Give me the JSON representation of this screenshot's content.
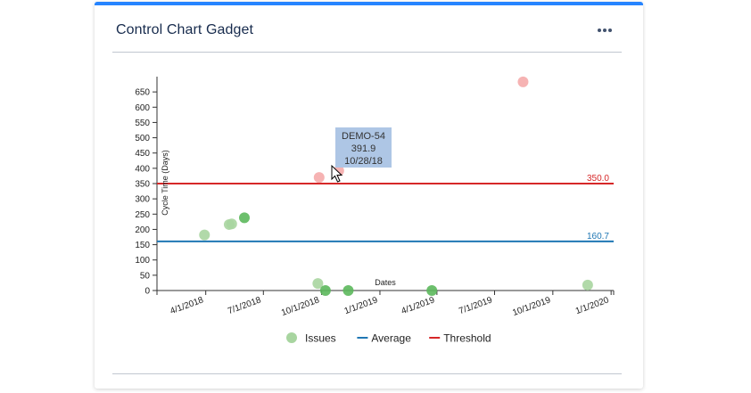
{
  "gadget": {
    "title": "Control Chart Gadget",
    "more_icon": "more-horizontal-icon"
  },
  "colors": {
    "accent": "#2684ff",
    "average": "#1f77b4",
    "threshold": "#d62728",
    "issue_green": "#5cb85c",
    "issue_red": "#f4a6a6"
  },
  "chart_data": {
    "type": "scatter",
    "xlabel": "Dates",
    "ylabel": "Cycle Time (Days)",
    "ylim": [
      0,
      700
    ],
    "xlim": [
      "2018-01-14",
      "2020-01-05"
    ],
    "y_ticks": [
      0,
      50,
      100,
      150,
      200,
      250,
      300,
      350,
      400,
      450,
      500,
      550,
      600,
      650
    ],
    "x_ticks": [
      {
        "date": "2018-04-01",
        "label": "4/1/2018"
      },
      {
        "date": "2018-07-01",
        "label": "7/1/2018"
      },
      {
        "date": "2018-10-01",
        "label": "10/1/2018"
      },
      {
        "date": "2019-01-01",
        "label": "1/1/2019"
      },
      {
        "date": "2019-04-01",
        "label": "4/1/2019"
      },
      {
        "date": "2019-07-01",
        "label": "7/1/2019"
      },
      {
        "date": "2019-10-01",
        "label": "10/1/2019"
      },
      {
        "date": "2020-01-01",
        "label": "1/1/2020"
      }
    ],
    "average": {
      "value": 160.7,
      "label": "160.7"
    },
    "threshold": {
      "value": 350.0,
      "label": "350.0"
    },
    "points": [
      {
        "date": "2018-03-30",
        "y": 182,
        "status": "light"
      },
      {
        "date": "2018-05-08",
        "y": 216,
        "status": "light"
      },
      {
        "date": "2018-05-12",
        "y": 218,
        "status": "light"
      },
      {
        "date": "2018-06-01",
        "y": 238,
        "status": "dark"
      },
      {
        "date": "2018-09-25",
        "y": 23,
        "status": "light"
      },
      {
        "date": "2018-09-27",
        "y": 370,
        "status": "over"
      },
      {
        "date": "2018-10-07",
        "y": 0,
        "status": "dark"
      },
      {
        "date": "2018-10-28",
        "y": 391.9,
        "status": "over"
      },
      {
        "date": "2018-11-12",
        "y": 0,
        "status": "dark"
      },
      {
        "date": "2019-03-24",
        "y": 0,
        "status": "dark"
      },
      {
        "date": "2019-08-15",
        "y": 683,
        "status": "over"
      },
      {
        "date": "2019-11-25",
        "y": 18,
        "status": "light"
      }
    ],
    "tooltip": {
      "key": "DEMO-54",
      "value": "391.9",
      "date": "10/28/18"
    },
    "legend": {
      "placement": "bottom",
      "items": [
        {
          "name": "Issues",
          "kind": "marker"
        },
        {
          "name": "Average",
          "kind": "line"
        },
        {
          "name": "Threshold",
          "kind": "line"
        }
      ]
    }
  }
}
